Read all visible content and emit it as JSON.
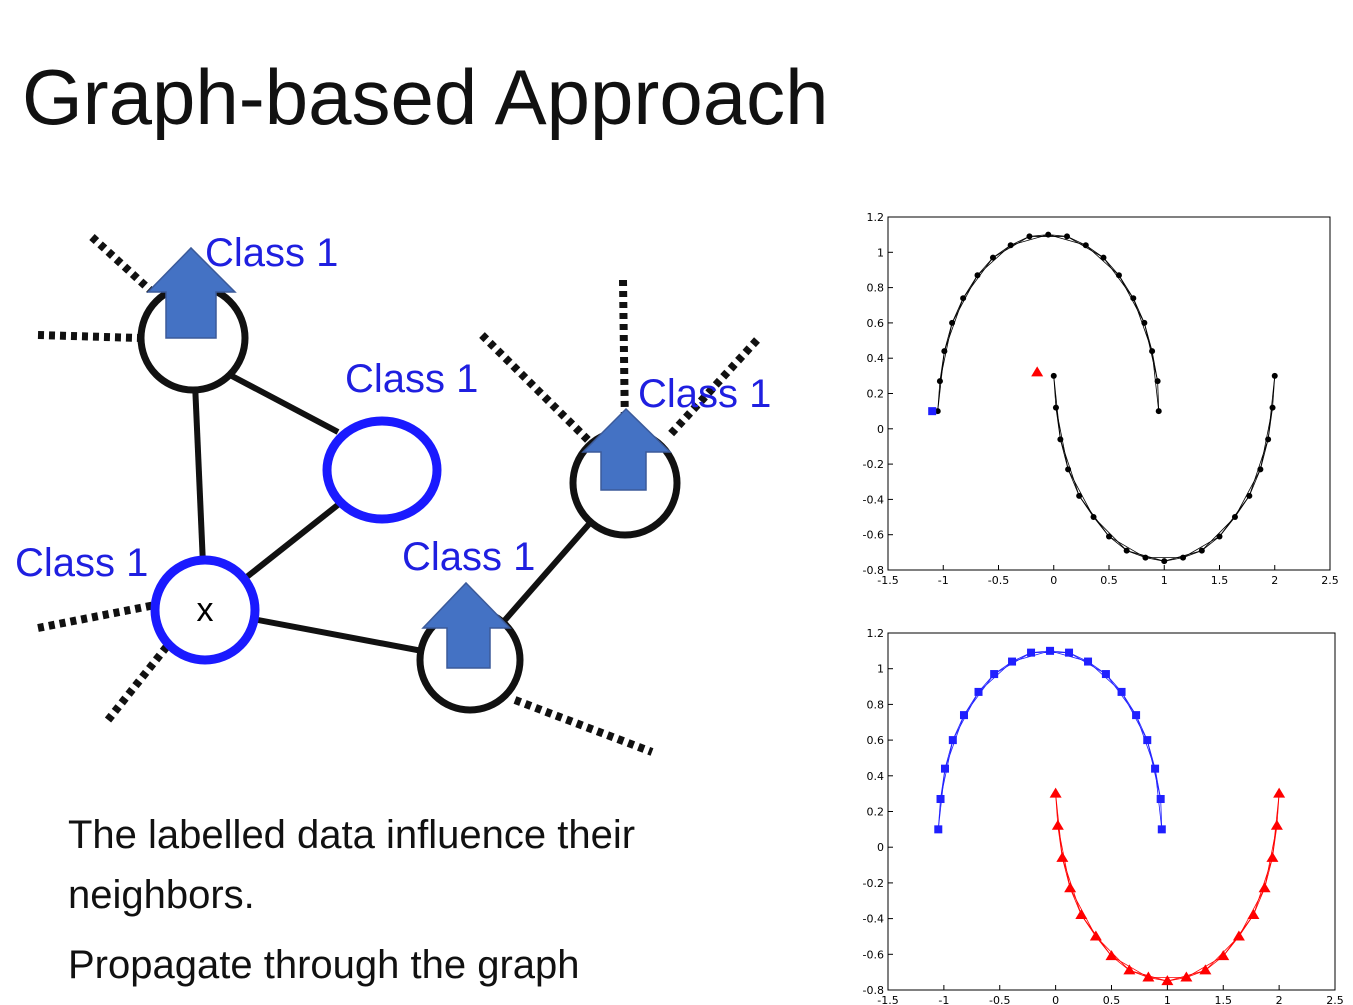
{
  "title": "Graph-based Approach",
  "diagram": {
    "labels": [
      "Class 1",
      "Class 1",
      "Class 1",
      "Class 1",
      "Class 1"
    ],
    "node_text": "x"
  },
  "bullets": [
    "The labelled data influence their neighbors.",
    "Propagate through the graph"
  ],
  "chart_data": [
    {
      "type": "scatter",
      "graph_edges": true,
      "xlim": [
        -1.5,
        2.5
      ],
      "ylim": [
        -0.8,
        1.2
      ],
      "xticks": [
        -1.5,
        -1,
        -0.5,
        0,
        0.5,
        1,
        1.5,
        2,
        2.5
      ],
      "yticks": [
        -0.8,
        -0.6,
        -0.4,
        -0.2,
        0,
        0.2,
        0.4,
        0.6,
        0.8,
        1,
        1.2
      ],
      "series": [
        {
          "color": "#000000",
          "marker": "circle",
          "x": [
            -1.05,
            -1.03,
            -0.99,
            -0.92,
            -0.82,
            -0.69,
            -0.55,
            -0.39,
            -0.22,
            -0.05,
            0.12,
            0.29,
            0.45,
            0.59,
            0.72,
            0.82,
            0.89,
            0.94,
            0.95
          ],
          "values": [
            0.1,
            0.27,
            0.44,
            0.6,
            0.74,
            0.87,
            0.97,
            1.04,
            1.09,
            1.1,
            1.09,
            1.04,
            0.97,
            0.87,
            0.74,
            0.6,
            0.44,
            0.27,
            0.1
          ]
        },
        {
          "color": "#000000",
          "marker": "circle",
          "x": [
            0,
            0.02,
            0.06,
            0.13,
            0.23,
            0.36,
            0.5,
            0.66,
            0.83,
            1,
            1.17,
            1.34,
            1.5,
            1.64,
            1.77,
            1.87,
            1.94,
            1.98,
            2
          ],
          "values": [
            0.3,
            0.12,
            -0.06,
            -0.23,
            -0.38,
            -0.5,
            -0.61,
            -0.69,
            -0.73,
            -0.75,
            -0.73,
            -0.69,
            -0.61,
            -0.5,
            -0.38,
            -0.23,
            -0.06,
            0.12,
            0.3
          ]
        },
        {
          "color": "#1f1fff",
          "marker": "square",
          "x": [
            -1.1
          ],
          "values": [
            0.1
          ]
        },
        {
          "color": "#ff0000",
          "marker": "triangle",
          "x": [
            -0.15
          ],
          "values": [
            0.32
          ]
        }
      ]
    },
    {
      "type": "scatter",
      "graph_edges": true,
      "xlim": [
        -1.5,
        2.5
      ],
      "ylim": [
        -0.8,
        1.2
      ],
      "xticks": [
        -1.5,
        -1,
        -0.5,
        0,
        0.5,
        1,
        1.5,
        2,
        2.5
      ],
      "yticks": [
        -0.8,
        -0.6,
        -0.4,
        -0.2,
        0,
        0.2,
        0.4,
        0.6,
        0.8,
        1,
        1.2
      ],
      "series": [
        {
          "color": "#1f1fff",
          "marker": "square",
          "x": [
            -1.05,
            -1.03,
            -0.99,
            -0.92,
            -0.82,
            -0.69,
            -0.55,
            -0.39,
            -0.22,
            -0.05,
            0.12,
            0.29,
            0.45,
            0.59,
            0.72,
            0.82,
            0.89,
            0.94,
            0.95
          ],
          "values": [
            0.1,
            0.27,
            0.44,
            0.6,
            0.74,
            0.87,
            0.97,
            1.04,
            1.09,
            1.1,
            1.09,
            1.04,
            0.97,
            0.87,
            0.74,
            0.6,
            0.44,
            0.27,
            0.1
          ]
        },
        {
          "color": "#ff0000",
          "marker": "triangle",
          "x": [
            0,
            0.02,
            0.06,
            0.13,
            0.23,
            0.36,
            0.5,
            0.66,
            0.83,
            1,
            1.17,
            1.34,
            1.5,
            1.64,
            1.77,
            1.87,
            1.94,
            1.98,
            2
          ],
          "values": [
            0.3,
            0.12,
            -0.06,
            -0.23,
            -0.38,
            -0.5,
            -0.61,
            -0.69,
            -0.73,
            -0.75,
            -0.73,
            -0.69,
            -0.61,
            -0.5,
            -0.38,
            -0.23,
            -0.06,
            0.12,
            0.3
          ]
        }
      ]
    }
  ]
}
